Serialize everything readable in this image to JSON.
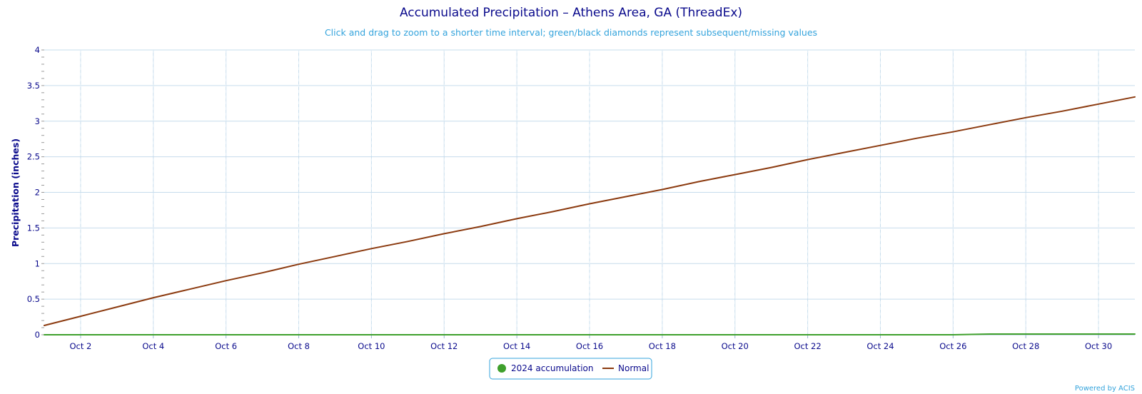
{
  "chart_data": {
    "type": "line",
    "title": "Accumulated Precipitation – Athens Area, GA (ThreadEx)",
    "subtitle": "Click and drag to zoom to a shorter time interval; green/black diamonds represent subsequent/missing values",
    "xlabel": "",
    "ylabel": "Precipitation (inches)",
    "ylim": [
      0,
      4
    ],
    "yticks": [
      "0",
      "0.5",
      "1",
      "1.5",
      "2",
      "2.5",
      "3",
      "3.5",
      "4"
    ],
    "xlim": [
      "Oct 1",
      "Oct 31"
    ],
    "x_tick_labels": [
      "Oct 2",
      "Oct 4",
      "Oct 6",
      "Oct 8",
      "Oct 10",
      "Oct 12",
      "Oct 14",
      "Oct 16",
      "Oct 18",
      "Oct 20",
      "Oct 22",
      "Oct 24",
      "Oct 26",
      "Oct 28",
      "Oct 30"
    ],
    "x": [
      "Oct 1",
      "Oct 2",
      "Oct 3",
      "Oct 4",
      "Oct 5",
      "Oct 6",
      "Oct 7",
      "Oct 8",
      "Oct 9",
      "Oct 10",
      "Oct 11",
      "Oct 12",
      "Oct 13",
      "Oct 14",
      "Oct 15",
      "Oct 16",
      "Oct 17",
      "Oct 18",
      "Oct 19",
      "Oct 20",
      "Oct 21",
      "Oct 22",
      "Oct 23",
      "Oct 24",
      "Oct 25",
      "Oct 26",
      "Oct 27",
      "Oct 28",
      "Oct 29",
      "Oct 30",
      "Oct 31"
    ],
    "grid": true,
    "legend_position": "bottom-center",
    "series": [
      {
        "name": "2024 accumulation",
        "color": "#3fa02c",
        "values": [
          0,
          0,
          0,
          0,
          0,
          0,
          0,
          0,
          0,
          0,
          0,
          0,
          0,
          0,
          0,
          0,
          0,
          0,
          0,
          0,
          0,
          0,
          0,
          0,
          0,
          0,
          0.01,
          0.01,
          0.01,
          0.01,
          0.01
        ]
      },
      {
        "name": "Normal",
        "color": "#8b3a0f",
        "values": [
          0.13,
          0.26,
          0.39,
          0.52,
          0.64,
          0.76,
          0.87,
          0.99,
          1.1,
          1.21,
          1.31,
          1.42,
          1.52,
          1.63,
          1.73,
          1.84,
          1.94,
          2.04,
          2.15,
          2.25,
          2.35,
          2.46,
          2.56,
          2.66,
          2.76,
          2.85,
          2.95,
          3.05,
          3.14,
          3.24,
          3.34
        ]
      }
    ]
  },
  "credits": "Powered by ACIS"
}
